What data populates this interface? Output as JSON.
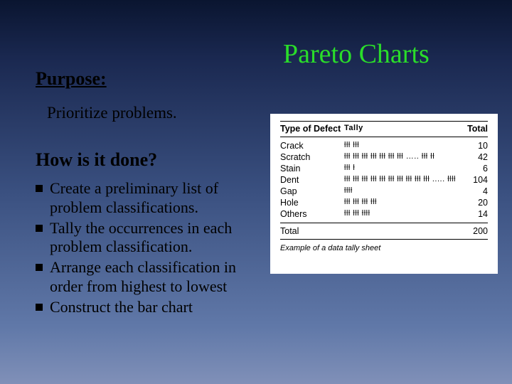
{
  "title": "Pareto Charts",
  "headings": {
    "purpose": "Purpose:",
    "how": "How is it done?"
  },
  "purpose_text": "Prioritize problems.",
  "bullets": [
    "Create a preliminary list of problem classifications.",
    "Tally the occurrences in each problem classification.",
    "Arrange each classification in order from highest to lowest",
    "Construct the bar chart"
  ],
  "tally": {
    "type": "table",
    "columns": [
      "Type of Defect",
      "Tally",
      "Total"
    ],
    "rows": [
      {
        "type": "Crack",
        "tally": "ƚƚƚ  ƚƚƚ",
        "total": "10"
      },
      {
        "type": "Scratch",
        "tally": "ƚƚƚ ƚƚƚ ƚƚƚ ƚƚƚ ƚƚƚ ƚƚƚ ƚƚƚ  …..  ƚƚƚ ƚƚ",
        "total": "42"
      },
      {
        "type": "Stain",
        "tally": "ƚƚƚ  ƚ",
        "total": "6"
      },
      {
        "type": "Dent",
        "tally": "ƚƚƚ ƚƚƚ ƚƚƚ ƚƚƚ ƚƚƚ ƚƚƚ ƚƚƚ ƚƚƚ ƚƚƚ ƚƚƚ  .....  ƚƚƚƚ",
        "total": "104"
      },
      {
        "type": "Gap",
        "tally": "ƚƚƚƚ",
        "total": "4"
      },
      {
        "type": "Hole",
        "tally": "ƚƚƚ ƚƚƚ ƚƚƚ ƚƚƚ",
        "total": "20"
      },
      {
        "type": "Others",
        "tally": "ƚƚƚ ƚƚƚ ƚƚƚƚ",
        "total": "14"
      }
    ],
    "total_label": "Total",
    "total_value": "200",
    "caption": "Example of a data tally sheet",
    "background_color": "#ffffff",
    "border_color": "#000000",
    "font_family": "sans-serif",
    "header_fontsize": 12.5,
    "row_fontsize": 12.5
  },
  "colors": {
    "title": "#2add2a",
    "heading": "#000000",
    "body_text": "#000000",
    "bullet_marker": "#000000",
    "bg_gradient_top": "#0a1530",
    "bg_gradient_bottom": "#8090b8"
  },
  "typography": {
    "title_fontsize": 38,
    "heading_fontsize": 26,
    "body_fontsize": 22,
    "font_family": "Times New Roman, serif"
  }
}
